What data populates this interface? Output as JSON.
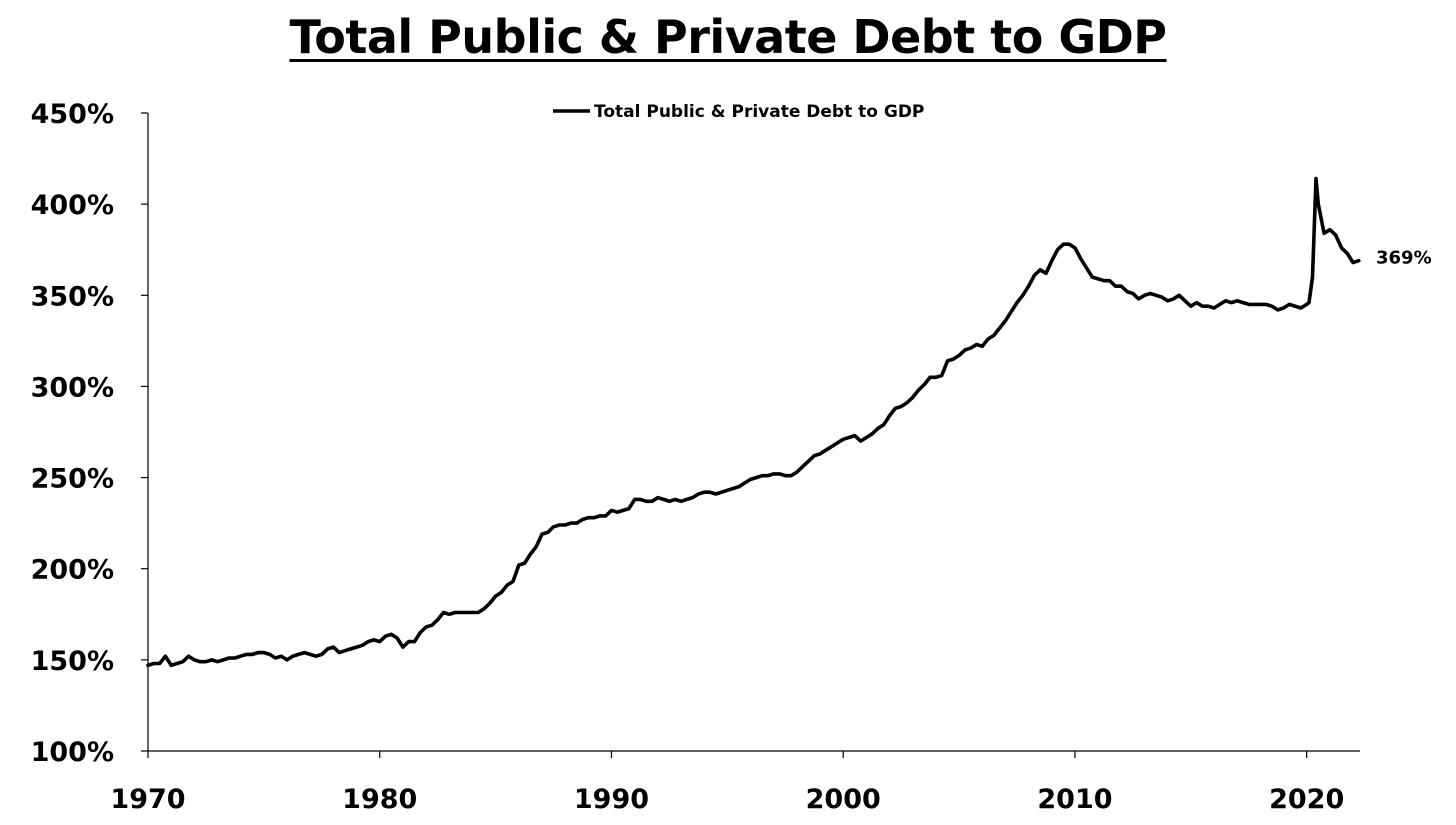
{
  "chart_data": {
    "type": "line",
    "title": "Total Public & Private Debt to GDP",
    "xlabel": "",
    "ylabel": "",
    "xlim": [
      1970,
      2022.3
    ],
    "ylim": [
      100,
      450
    ],
    "x_ticks": [
      1970,
      1980,
      1990,
      2000,
      2010,
      2020
    ],
    "y_ticks": [
      100,
      150,
      200,
      250,
      300,
      350,
      400,
      450
    ],
    "y_tick_labels": [
      "100%",
      "150%",
      "200%",
      "250%",
      "300%",
      "350%",
      "400%",
      "450%"
    ],
    "legend_position": "top-center",
    "grid": false,
    "end_label": "369%",
    "series": [
      {
        "name": "Total Public & Private Debt to GDP",
        "color": "#000000",
        "points": [
          [
            1970.0,
            147
          ],
          [
            1970.25,
            148
          ],
          [
            1970.5,
            148
          ],
          [
            1970.75,
            152
          ],
          [
            1971.0,
            147
          ],
          [
            1971.25,
            148
          ],
          [
            1971.5,
            149
          ],
          [
            1971.75,
            152
          ],
          [
            1972.0,
            150
          ],
          [
            1972.25,
            149
          ],
          [
            1972.5,
            149
          ],
          [
            1972.75,
            150
          ],
          [
            1973.0,
            149
          ],
          [
            1973.25,
            150
          ],
          [
            1973.5,
            151
          ],
          [
            1973.75,
            151
          ],
          [
            1974.0,
            152
          ],
          [
            1974.25,
            153
          ],
          [
            1974.5,
            153
          ],
          [
            1974.75,
            154
          ],
          [
            1975.0,
            154
          ],
          [
            1975.25,
            153
          ],
          [
            1975.5,
            151
          ],
          [
            1975.75,
            152
          ],
          [
            1976.0,
            150
          ],
          [
            1976.25,
            152
          ],
          [
            1976.5,
            153
          ],
          [
            1976.75,
            154
          ],
          [
            1977.0,
            153
          ],
          [
            1977.25,
            152
          ],
          [
            1977.5,
            153
          ],
          [
            1977.75,
            156
          ],
          [
            1978.0,
            157
          ],
          [
            1978.25,
            154
          ],
          [
            1978.5,
            155
          ],
          [
            1978.75,
            156
          ],
          [
            1979.0,
            157
          ],
          [
            1979.25,
            158
          ],
          [
            1979.5,
            160
          ],
          [
            1979.75,
            161
          ],
          [
            1980.0,
            160
          ],
          [
            1980.25,
            163
          ],
          [
            1980.5,
            164
          ],
          [
            1980.75,
            162
          ],
          [
            1981.0,
            157
          ],
          [
            1981.25,
            160
          ],
          [
            1981.5,
            160
          ],
          [
            1981.75,
            165
          ],
          [
            1982.0,
            168
          ],
          [
            1982.25,
            169
          ],
          [
            1982.5,
            172
          ],
          [
            1982.75,
            176
          ],
          [
            1983.0,
            175
          ],
          [
            1983.25,
            176
          ],
          [
            1983.5,
            176
          ],
          [
            1983.75,
            176
          ],
          [
            1984.0,
            176
          ],
          [
            1984.25,
            176
          ],
          [
            1984.5,
            178
          ],
          [
            1984.75,
            181
          ],
          [
            1985.0,
            185
          ],
          [
            1985.25,
            187
          ],
          [
            1985.5,
            191
          ],
          [
            1985.75,
            193
          ],
          [
            1986.0,
            202
          ],
          [
            1986.25,
            203
          ],
          [
            1986.5,
            208
          ],
          [
            1986.75,
            212
          ],
          [
            1987.0,
            219
          ],
          [
            1987.25,
            220
          ],
          [
            1987.5,
            223
          ],
          [
            1987.75,
            224
          ],
          [
            1988.0,
            224
          ],
          [
            1988.25,
            225
          ],
          [
            1988.5,
            225
          ],
          [
            1988.75,
            227
          ],
          [
            1989.0,
            228
          ],
          [
            1989.25,
            228
          ],
          [
            1989.5,
            229
          ],
          [
            1989.75,
            229
          ],
          [
            1990.0,
            232
          ],
          [
            1990.25,
            231
          ],
          [
            1990.5,
            232
          ],
          [
            1990.75,
            233
          ],
          [
            1991.0,
            238
          ],
          [
            1991.25,
            238
          ],
          [
            1991.5,
            237
          ],
          [
            1991.75,
            237
          ],
          [
            1992.0,
            239
          ],
          [
            1992.25,
            238
          ],
          [
            1992.5,
            237
          ],
          [
            1992.75,
            238
          ],
          [
            1993.0,
            237
          ],
          [
            1993.25,
            238
          ],
          [
            1993.5,
            239
          ],
          [
            1993.75,
            241
          ],
          [
            1994.0,
            242
          ],
          [
            1994.25,
            242
          ],
          [
            1994.5,
            241
          ],
          [
            1994.75,
            242
          ],
          [
            1995.0,
            243
          ],
          [
            1995.25,
            244
          ],
          [
            1995.5,
            245
          ],
          [
            1995.75,
            247
          ],
          [
            1996.0,
            249
          ],
          [
            1996.25,
            250
          ],
          [
            1996.5,
            251
          ],
          [
            1996.75,
            251
          ],
          [
            1997.0,
            252
          ],
          [
            1997.25,
            252
          ],
          [
            1997.5,
            251
          ],
          [
            1997.75,
            251
          ],
          [
            1998.0,
            253
          ],
          [
            1998.25,
            256
          ],
          [
            1998.5,
            259
          ],
          [
            1998.75,
            262
          ],
          [
            1999.0,
            263
          ],
          [
            1999.25,
            265
          ],
          [
            1999.5,
            267
          ],
          [
            1999.75,
            269
          ],
          [
            2000.0,
            271
          ],
          [
            2000.25,
            272
          ],
          [
            2000.5,
            273
          ],
          [
            2000.75,
            270
          ],
          [
            2001.0,
            272
          ],
          [
            2001.25,
            274
          ],
          [
            2001.5,
            277
          ],
          [
            2001.75,
            279
          ],
          [
            2002.0,
            284
          ],
          [
            2002.25,
            288
          ],
          [
            2002.5,
            289
          ],
          [
            2002.75,
            291
          ],
          [
            2003.0,
            294
          ],
          [
            2003.25,
            298
          ],
          [
            2003.5,
            301
          ],
          [
            2003.75,
            305
          ],
          [
            2004.0,
            305
          ],
          [
            2004.25,
            306
          ],
          [
            2004.5,
            314
          ],
          [
            2004.75,
            315
          ],
          [
            2005.0,
            317
          ],
          [
            2005.25,
            320
          ],
          [
            2005.5,
            321
          ],
          [
            2005.75,
            323
          ],
          [
            2006.0,
            322
          ],
          [
            2006.25,
            326
          ],
          [
            2006.5,
            328
          ],
          [
            2006.75,
            332
          ],
          [
            2007.0,
            336
          ],
          [
            2007.25,
            341
          ],
          [
            2007.5,
            346
          ],
          [
            2007.75,
            350
          ],
          [
            2008.0,
            355
          ],
          [
            2008.25,
            361
          ],
          [
            2008.5,
            364
          ],
          [
            2008.75,
            362
          ],
          [
            2009.0,
            369
          ],
          [
            2009.25,
            375
          ],
          [
            2009.5,
            378
          ],
          [
            2009.75,
            378
          ],
          [
            2010.0,
            376
          ],
          [
            2010.25,
            370
          ],
          [
            2010.5,
            365
          ],
          [
            2010.75,
            360
          ],
          [
            2011.0,
            359
          ],
          [
            2011.25,
            358
          ],
          [
            2011.5,
            358
          ],
          [
            2011.75,
            355
          ],
          [
            2012.0,
            355
          ],
          [
            2012.25,
            352
          ],
          [
            2012.5,
            351
          ],
          [
            2012.75,
            348
          ],
          [
            2013.0,
            350
          ],
          [
            2013.25,
            351
          ],
          [
            2013.5,
            350
          ],
          [
            2013.75,
            349
          ],
          [
            2014.0,
            347
          ],
          [
            2014.25,
            348
          ],
          [
            2014.5,
            350
          ],
          [
            2014.75,
            347
          ],
          [
            2015.0,
            344
          ],
          [
            2015.25,
            346
          ],
          [
            2015.5,
            344
          ],
          [
            2015.75,
            344
          ],
          [
            2016.0,
            343
          ],
          [
            2016.25,
            345
          ],
          [
            2016.5,
            347
          ],
          [
            2016.75,
            346
          ],
          [
            2017.0,
            347
          ],
          [
            2017.25,
            346
          ],
          [
            2017.5,
            345
          ],
          [
            2017.75,
            345
          ],
          [
            2018.0,
            345
          ],
          [
            2018.25,
            345
          ],
          [
            2018.5,
            344
          ],
          [
            2018.75,
            342
          ],
          [
            2019.0,
            343
          ],
          [
            2019.25,
            345
          ],
          [
            2019.5,
            344
          ],
          [
            2019.75,
            343
          ],
          [
            2020.0,
            345
          ],
          [
            2020.1,
            346
          ],
          [
            2020.25,
            360
          ],
          [
            2020.4,
            414
          ],
          [
            2020.5,
            400
          ],
          [
            2020.75,
            384
          ],
          [
            2021.0,
            386
          ],
          [
            2021.25,
            383
          ],
          [
            2021.5,
            376
          ],
          [
            2021.75,
            373
          ],
          [
            2022.0,
            368
          ],
          [
            2022.25,
            369
          ]
        ]
      }
    ]
  }
}
